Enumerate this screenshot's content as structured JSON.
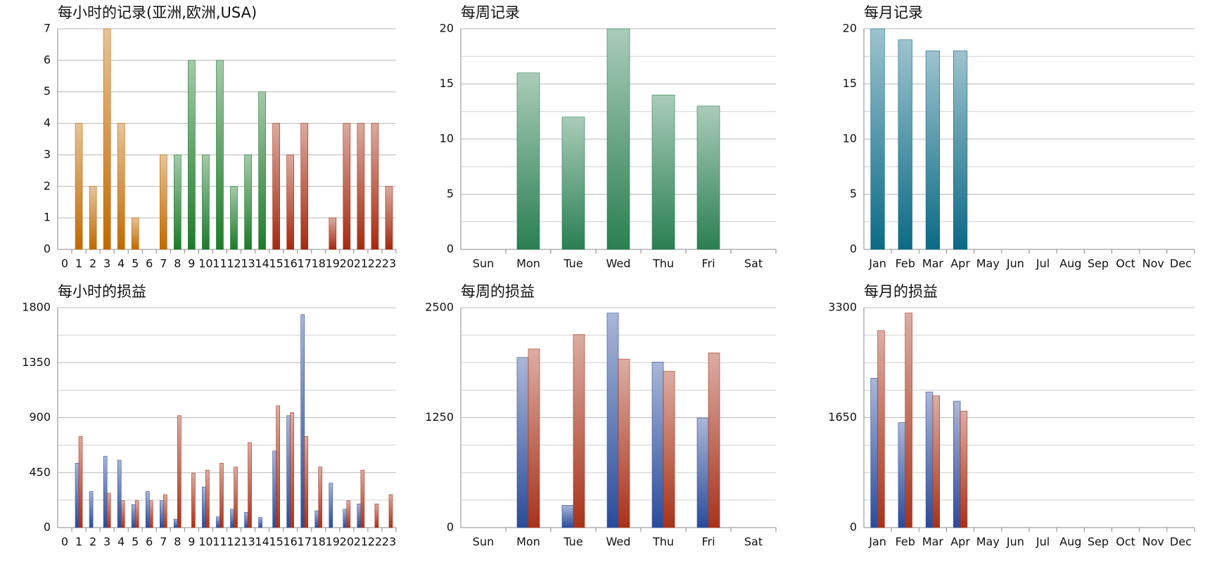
{
  "chart_data": [
    {
      "type": "bar",
      "title": "每小时的记录(亚洲,欧洲,USA)",
      "categories": [
        "0",
        "1",
        "2",
        "3",
        "4",
        "5",
        "6",
        "7",
        "8",
        "9",
        "10",
        "11",
        "12",
        "13",
        "14",
        "15",
        "16",
        "17",
        "18",
        "19",
        "20",
        "21",
        "22",
        "23"
      ],
      "values": [
        0,
        4,
        2,
        7,
        4,
        1,
        0,
        3,
        3,
        6,
        3,
        6,
        2,
        3,
        5,
        4,
        3,
        4,
        0,
        1,
        4,
        4,
        4,
        2
      ],
      "bar_colors": [
        "#c06a00",
        "#c06a00",
        "#c06a00",
        "#c06a00",
        "#c06a00",
        "#c06a00",
        "#c06a00",
        "#c06a00",
        "#1e7a2a",
        "#1e7a2a",
        "#1e7a2a",
        "#1e7a2a",
        "#1e7a2a",
        "#1e7a2a",
        "#1e7a2a",
        "#a52a10",
        "#a52a10",
        "#a52a10",
        "#a52a10",
        "#a52a10",
        "#a52a10",
        "#a52a10",
        "#a52a10",
        "#a52a10"
      ],
      "ylim": [
        0,
        7
      ],
      "yticks": [
        0,
        1,
        2,
        3,
        4,
        5,
        6,
        7
      ],
      "grid": true,
      "grid_divisions": 1
    },
    {
      "type": "bar",
      "title": "每周记录",
      "categories": [
        "Sun",
        "Mon",
        "Tue",
        "Wed",
        "Thu",
        "Fri",
        "Sat"
      ],
      "values": [
        0,
        16,
        12,
        20,
        14,
        13,
        0
      ],
      "color": "#2a7f52",
      "ylim": [
        0,
        20
      ],
      "yticks": [
        0,
        5,
        10,
        15,
        20
      ],
      "grid": true,
      "grid_divisions": 2
    },
    {
      "type": "bar",
      "title": "每月记录",
      "categories": [
        "Jan",
        "Feb",
        "Mar",
        "Apr",
        "May",
        "Jun",
        "Jul",
        "Aug",
        "Sep",
        "Oct",
        "Nov",
        "Dec"
      ],
      "values": [
        20,
        19,
        18,
        18,
        0,
        0,
        0,
        0,
        0,
        0,
        0,
        0
      ],
      "color": "#0b6a85",
      "ylim": [
        0,
        20
      ],
      "yticks": [
        0,
        5,
        10,
        15,
        20
      ],
      "grid": true,
      "grid_divisions": 2
    },
    {
      "type": "bar",
      "title": "每小时的损益",
      "categories": [
        "0",
        "1",
        "2",
        "3",
        "4",
        "5",
        "6",
        "7",
        "8",
        "9",
        "10",
        "11",
        "12",
        "13",
        "14",
        "15",
        "16",
        "17",
        "18",
        "19",
        "20",
        "21",
        "22",
        "23"
      ],
      "series": [
        {
          "color": "#2a4b9a",
          "values": [
            0,
            527,
            295,
            583,
            552,
            188,
            295,
            220,
            69,
            0,
            332,
            88,
            150,
            125,
            82,
            627,
            916,
            1744,
            138,
            364,
            150,
            194,
            0,
            0
          ]
        },
        {
          "color": "#a8321a",
          "values": [
            0,
            746,
            0,
            282,
            220,
            220,
            220,
            270,
            916,
            445,
            470,
            527,
            496,
            696,
            0,
            997,
            941,
            746,
            496,
            0,
            220,
            470,
            194,
            270
          ]
        }
      ],
      "ylim": [
        0,
        1800
      ],
      "yticks": [
        0,
        450,
        900,
        1350,
        1800
      ],
      "grid": true,
      "grid_divisions": 2
    },
    {
      "type": "bar",
      "title": "每周的损益",
      "categories": [
        "Sun",
        "Mon",
        "Tue",
        "Wed",
        "Thu",
        "Fri",
        "Sat"
      ],
      "series": [
        {
          "color": "#2a4b9a",
          "values": [
            0,
            1934,
            253,
            2439,
            1882,
            1246,
            0
          ]
        },
        {
          "color": "#a8321a",
          "values": [
            0,
            2030,
            2195,
            1916,
            1777,
            1986,
            0
          ]
        }
      ],
      "ylim": [
        0,
        2500
      ],
      "yticks": [
        0,
        1250,
        2500
      ],
      "grid": true,
      "grid_divisions": 4
    },
    {
      "type": "bar",
      "title": "每月的损益",
      "categories": [
        "Jan",
        "Feb",
        "Mar",
        "Apr",
        "May",
        "Jun",
        "Jul",
        "Aug",
        "Sep",
        "Oct",
        "Nov",
        "Dec"
      ],
      "series": [
        {
          "color": "#2a4b9a",
          "values": [
            2242,
            1575,
            2035,
            1897,
            0,
            0,
            0,
            0,
            0,
            0,
            0,
            0
          ]
        },
        {
          "color": "#a8321a",
          "values": [
            2955,
            3220,
            1977,
            1748,
            0,
            0,
            0,
            0,
            0,
            0,
            0,
            0
          ]
        }
      ],
      "ylim": [
        0,
        3300
      ],
      "yticks": [
        0,
        1650,
        3300
      ],
      "grid": true,
      "grid_divisions": 4
    }
  ]
}
